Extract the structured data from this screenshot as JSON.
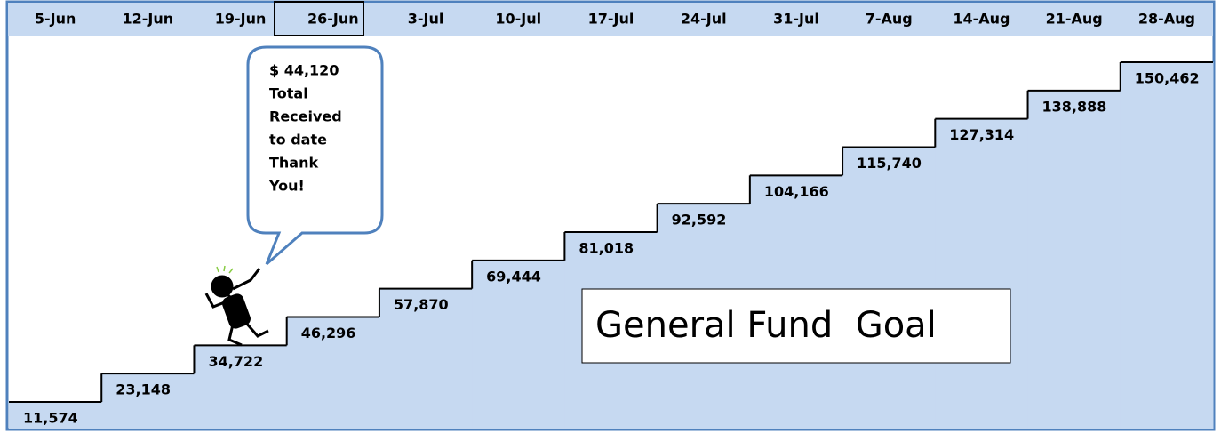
{
  "chart_data": {
    "type": "step",
    "categories": [
      "5-Jun",
      "12-Jun",
      "19-Jun",
      "26-Jun",
      "3-Jul",
      "10-Jul",
      "17-Jul",
      "24-Jul",
      "31-Jul",
      "7-Aug",
      "14-Aug",
      "21-Aug",
      "28-Aug"
    ],
    "values": [
      11574,
      23148,
      34722,
      46296,
      57870,
      69444,
      81018,
      92592,
      104166,
      115740,
      127314,
      138888,
      150462
    ],
    "value_labels": [
      "11,574",
      "23,148",
      "34,722",
      "46,296",
      "57,870",
      "69,444",
      "81,018",
      "92,592",
      "104,166",
      "115,740",
      "127,314",
      "138,888",
      "150,462"
    ],
    "color": "#c6d9f1",
    "annotation": {
      "amount": "$ 44,120",
      "lines": [
        "Total",
        "Received",
        "to date",
        "Thank",
        "You!"
      ]
    },
    "goal_label": "General Fund  Goal"
  }
}
